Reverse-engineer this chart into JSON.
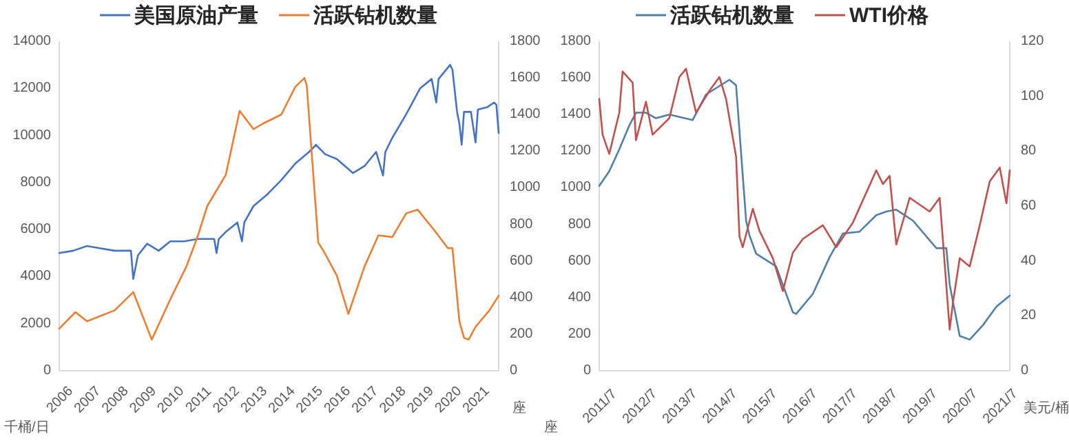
{
  "chart_data": [
    {
      "type": "line",
      "ylabel": "千桶/日",
      "y2label": "座",
      "legend": "top",
      "grid": false,
      "xlim": [
        "2006",
        "2021-11"
      ],
      "xticks": [
        "2006",
        "2007",
        "2008",
        "2009",
        "2010",
        "2011",
        "2012",
        "2013",
        "2014",
        "2015",
        "2016",
        "2017",
        "2018",
        "2019",
        "2020",
        "2021"
      ],
      "ylim": [
        0,
        14000
      ],
      "yticks": [
        0,
        2000,
        4000,
        6000,
        8000,
        10000,
        12000,
        14000
      ],
      "y2lim": [
        0,
        1800
      ],
      "y2ticks": [
        0,
        200,
        400,
        600,
        800,
        1000,
        1200,
        1400,
        1600,
        1800
      ],
      "series": [
        {
          "name": "美国原油产量",
          "color": "#4472c4",
          "x": [
            "2006-01",
            "2006-07",
            "2007-01",
            "2007-07",
            "2008-01",
            "2008-08",
            "2008-09",
            "2008-11",
            "2009-03",
            "2009-08",
            "2010-01",
            "2010-07",
            "2011-01",
            "2011-08",
            "2011-09",
            "2011-10",
            "2012-01",
            "2012-06",
            "2012-08",
            "2012-09",
            "2013-01",
            "2013-07",
            "2014-01",
            "2014-07",
            "2015-01",
            "2015-04",
            "2015-08",
            "2016-01",
            "2016-08",
            "2017-01",
            "2017-06",
            "2017-09",
            "2017-10",
            "2018-01",
            "2018-07",
            "2019-01",
            "2019-06",
            "2019-08",
            "2019-09",
            "2020-02",
            "2020-03",
            "2020-05",
            "2020-06",
            "2020-07",
            "2020-08",
            "2020-11",
            "2021-01",
            "2021-02",
            "2021-06",
            "2021-09",
            "2021-10",
            "2021-11"
          ],
          "values": [
            5000,
            5100,
            5300,
            5200,
            5100,
            5100,
            3900,
            4900,
            5400,
            5100,
            5500,
            5500,
            5600,
            5600,
            5000,
            5600,
            5900,
            6300,
            5500,
            6300,
            7000,
            7500,
            8100,
            8800,
            9300,
            9600,
            9200,
            9000,
            8400,
            8700,
            9300,
            8300,
            9300,
            9900,
            10900,
            12000,
            12400,
            11400,
            12400,
            13000,
            12800,
            11000,
            10500,
            9600,
            11000,
            11000,
            9700,
            11100,
            11200,
            11400,
            11300,
            10100
          ]
        },
        {
          "name": "活跃钻机数量",
          "color": "#ed7d31",
          "axis": "y2",
          "x": [
            "2006-01",
            "2006-08",
            "2007-01",
            "2008-01",
            "2008-09",
            "2009-05",
            "2010-01",
            "2010-08",
            "2011-01",
            "2011-05",
            "2012-01",
            "2012-07",
            "2013-01",
            "2013-05",
            "2014-01",
            "2014-07",
            "2014-11",
            "2014-12",
            "2015-05",
            "2015-07",
            "2016-01",
            "2016-06",
            "2017-01",
            "2017-07",
            "2018-01",
            "2018-07",
            "2018-12",
            "2019-07",
            "2020-01",
            "2020-03",
            "2020-06",
            "2020-08",
            "2020-10",
            "2021-01",
            "2021-07",
            "2021-11"
          ],
          "values": [
            230,
            320,
            270,
            330,
            430,
            170,
            390,
            570,
            740,
            900,
            1070,
            1420,
            1320,
            1350,
            1400,
            1550,
            1600,
            1560,
            700,
            660,
            520,
            310,
            570,
            740,
            730,
            860,
            880,
            770,
            670,
            670,
            270,
            180,
            170,
            240,
            330,
            410
          ]
        }
      ]
    },
    {
      "type": "line",
      "ylabel": "座",
      "y2label": "美元/桶",
      "legend": "top",
      "grid": false,
      "xlim": [
        "2011-07",
        "2021-10"
      ],
      "xticks": [
        {
          "value": "2011-07",
          "label": "2011/7"
        },
        {
          "value": "2012-07",
          "label": "2012/7"
        },
        {
          "value": "2013-07",
          "label": "2013/7"
        },
        {
          "value": "2014-07",
          "label": "2014/7"
        },
        {
          "value": "2015-07",
          "label": "2015/7"
        },
        {
          "value": "2016-07",
          "label": "2016/7"
        },
        {
          "value": "2017-07",
          "label": "2017/7"
        },
        {
          "value": "2018-07",
          "label": "2018/7"
        },
        {
          "value": "2019-07",
          "label": "2019/7"
        },
        {
          "value": "2020-07",
          "label": "2020/7"
        },
        {
          "value": "2021-07",
          "label": "2021/7"
        }
      ],
      "ylim": [
        0,
        1800
      ],
      "yticks": [
        0,
        200,
        400,
        600,
        800,
        1000,
        1200,
        1400,
        1600,
        1800
      ],
      "y2lim": [
        0,
        120
      ],
      "y2ticks": [
        0,
        20,
        40,
        60,
        80,
        100,
        120
      ],
      "series": [
        {
          "name": "活跃钻机数量",
          "color": "#4e7fa8",
          "x": [
            "2011-07",
            "2011-10",
            "2012-01",
            "2012-04",
            "2012-06",
            "2012-09",
            "2012-12",
            "2013-04",
            "2013-11",
            "2014-03",
            "2014-10",
            "2014-12",
            "2015-03",
            "2015-04",
            "2015-06",
            "2015-12",
            "2016-05",
            "2016-06",
            "2016-11",
            "2017-04",
            "2017-08",
            "2018-01",
            "2018-06",
            "2018-09",
            "2018-12",
            "2019-05",
            "2019-12",
            "2020-03",
            "2020-04",
            "2020-07",
            "2020-10",
            "2021-02",
            "2021-06",
            "2021-10"
          ],
          "values": [
            1010,
            1090,
            1210,
            1340,
            1410,
            1410,
            1380,
            1400,
            1370,
            1510,
            1590,
            1560,
            820,
            740,
            640,
            570,
            320,
            310,
            420,
            620,
            750,
            760,
            850,
            870,
            880,
            820,
            670,
            670,
            470,
            190,
            170,
            250,
            350,
            410
          ]
        },
        {
          "name": "WTI价格",
          "color": "#c0504d",
          "axis": "y2",
          "x": [
            "2011-07",
            "2011-08",
            "2011-10",
            "2012-01",
            "2012-02",
            "2012-05",
            "2012-06",
            "2012-09",
            "2012-11",
            "2013-04",
            "2013-07",
            "2013-09",
            "2013-12",
            "2014-04",
            "2014-07",
            "2014-09",
            "2014-12",
            "2015-01",
            "2015-02",
            "2015-05",
            "2015-07",
            "2015-11",
            "2016-02",
            "2016-05",
            "2016-08",
            "2017-02",
            "2017-06",
            "2017-11",
            "2018-06",
            "2018-08",
            "2018-10",
            "2018-12",
            "2019-04",
            "2019-10",
            "2020-01",
            "2020-04",
            "2020-05",
            "2020-07",
            "2020-10",
            "2021-01",
            "2021-04",
            "2021-07",
            "2021-09",
            "2021-10"
          ],
          "values": [
            99,
            86,
            79,
            94,
            109,
            105,
            84,
            98,
            86,
            92,
            107,
            110,
            94,
            102,
            107,
            99,
            78,
            49,
            45,
            59,
            51,
            41,
            29,
            43,
            48,
            53,
            45,
            54,
            73,
            68,
            71,
            46,
            63,
            58,
            63,
            15,
            25,
            41,
            38,
            53,
            69,
            74,
            61,
            73
          ]
        }
      ]
    }
  ]
}
